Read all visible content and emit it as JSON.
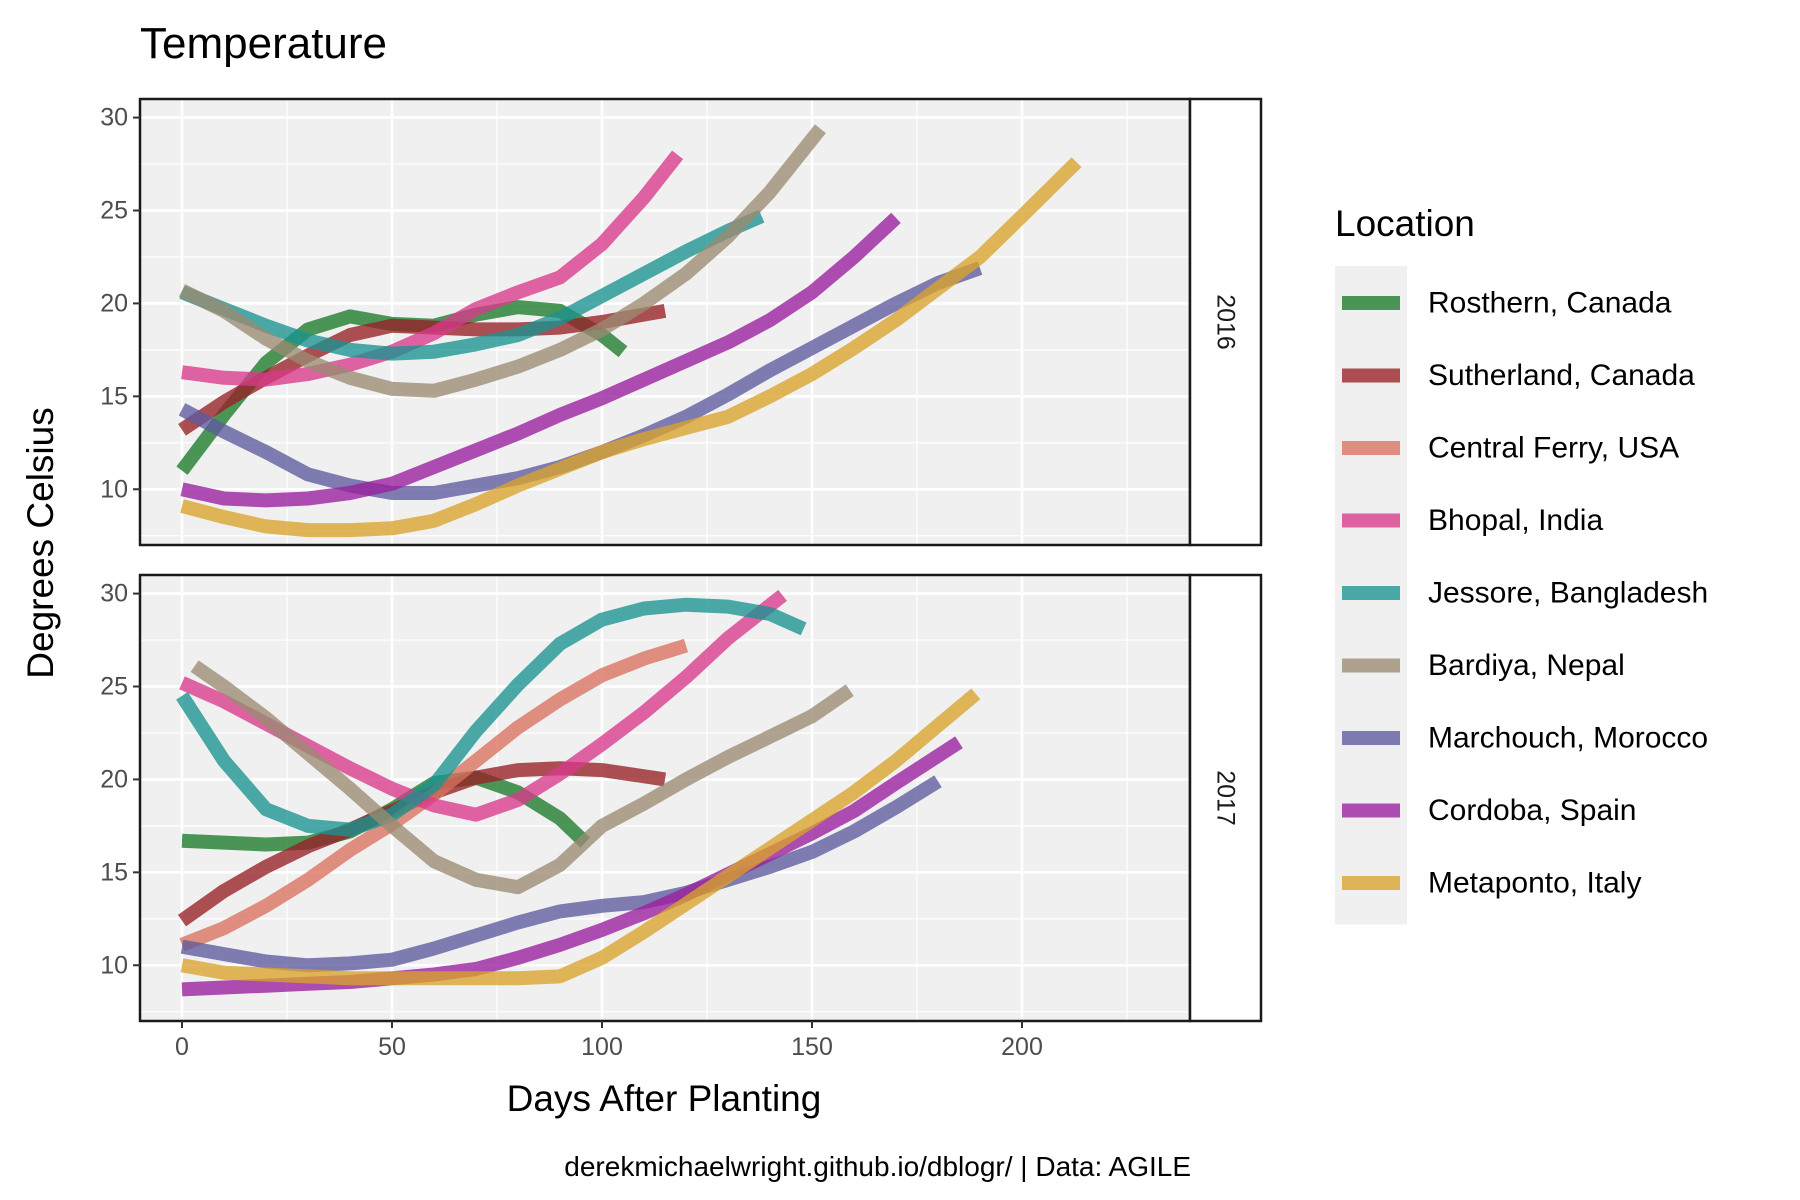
{
  "chart_data": {
    "type": "line",
    "title": "Temperature",
    "xlabel": "Days After Planting",
    "ylabel": "Degrees Celsius",
    "caption": "derekmichaelwright.github.io/dblogr/ | Data: AGILE",
    "legend_title": "Location",
    "legend_position": "right",
    "xlim": [
      -10,
      240
    ],
    "ylim": [
      7,
      31
    ],
    "x_ticks": [
      0,
      50,
      100,
      150,
      200
    ],
    "y_ticks": [
      10,
      15,
      20,
      25,
      30
    ],
    "grid": true,
    "facets": [
      "2016",
      "2017"
    ],
    "series": [
      {
        "name": "Rosthern, Canada",
        "color": "#1b7a2a",
        "data": {
          "2016": [
            [
              0,
              11
            ],
            [
              10,
              14
            ],
            [
              20,
              16.8
            ],
            [
              30,
              18.6
            ],
            [
              40,
              19.3
            ],
            [
              50,
              18.9
            ],
            [
              60,
              18.8
            ],
            [
              70,
              19.4
            ],
            [
              80,
              19.8
            ],
            [
              90,
              19.6
            ],
            [
              100,
              18.3
            ],
            [
              105,
              17.4
            ]
          ],
          "2017": [
            [
              0,
              16.7
            ],
            [
              10,
              16.6
            ],
            [
              20,
              16.5
            ],
            [
              30,
              16.6
            ],
            [
              40,
              17.2
            ],
            [
              50,
              18.4
            ],
            [
              60,
              19.8
            ],
            [
              70,
              20.1
            ],
            [
              80,
              19.3
            ],
            [
              90,
              17.9
            ],
            [
              96,
              16.6
            ]
          ]
        }
      },
      {
        "name": "Sutherland, Canada",
        "color": "#962025",
        "data": {
          "2016": [
            [
              0,
              13.2
            ],
            [
              10,
              14.7
            ],
            [
              20,
              16
            ],
            [
              30,
              17.2
            ],
            [
              40,
              18.3
            ],
            [
              50,
              18.8
            ],
            [
              60,
              18.7
            ],
            [
              70,
              18.6
            ],
            [
              80,
              18.6
            ],
            [
              90,
              18.7
            ],
            [
              100,
              19
            ],
            [
              115,
              19.6
            ]
          ],
          "2017": [
            [
              0,
              12.4
            ],
            [
              10,
              14
            ],
            [
              20,
              15.3
            ],
            [
              30,
              16.4
            ],
            [
              40,
              17.3
            ],
            [
              50,
              18.3
            ],
            [
              60,
              19.3
            ],
            [
              70,
              20.1
            ],
            [
              80,
              20.5
            ],
            [
              90,
              20.6
            ],
            [
              100,
              20.5
            ],
            [
              115,
              20
            ]
          ]
        }
      },
      {
        "name": "Central Ferry, USA",
        "color": "#d9715e",
        "data": {
          "2017": [
            [
              0,
              11.1
            ],
            [
              10,
              12
            ],
            [
              20,
              13.2
            ],
            [
              30,
              14.6
            ],
            [
              40,
              16.2
            ],
            [
              50,
              17.6
            ],
            [
              60,
              19.2
            ],
            [
              70,
              21
            ],
            [
              80,
              22.8
            ],
            [
              90,
              24.3
            ],
            [
              100,
              25.6
            ],
            [
              110,
              26.5
            ],
            [
              120,
              27.2
            ]
          ]
        }
      },
      {
        "name": "Bhopal, India",
        "color": "#d93a8c",
        "data": {
          "2016": [
            [
              0,
              16.3
            ],
            [
              10,
              16
            ],
            [
              20,
              15.9
            ],
            [
              30,
              16.2
            ],
            [
              40,
              16.7
            ],
            [
              50,
              17.4
            ],
            [
              60,
              18.4
            ],
            [
              70,
              19.7
            ],
            [
              80,
              20.6
            ],
            [
              90,
              21.4
            ],
            [
              100,
              23.2
            ],
            [
              110,
              25.7
            ],
            [
              118,
              28
            ]
          ],
          "2017": [
            [
              0,
              25.2
            ],
            [
              10,
              24.2
            ],
            [
              20,
              23
            ],
            [
              30,
              21.8
            ],
            [
              40,
              20.6
            ],
            [
              50,
              19.5
            ],
            [
              60,
              18.6
            ],
            [
              70,
              18.1
            ],
            [
              80,
              18.9
            ],
            [
              90,
              20.3
            ],
            [
              100,
              21.9
            ],
            [
              110,
              23.6
            ],
            [
              120,
              25.5
            ],
            [
              130,
              27.6
            ],
            [
              143,
              29.9
            ]
          ]
        }
      },
      {
        "name": "Jessore, Bangladesh",
        "color": "#1a9491",
        "data": {
          "2016": [
            [
              0,
              20.6
            ],
            [
              10,
              19.7
            ],
            [
              20,
              18.8
            ],
            [
              30,
              18
            ],
            [
              40,
              17.5
            ],
            [
              50,
              17.3
            ],
            [
              60,
              17.4
            ],
            [
              70,
              17.8
            ],
            [
              80,
              18.3
            ],
            [
              90,
              19.2
            ],
            [
              100,
              20.4
            ],
            [
              110,
              21.6
            ],
            [
              120,
              22.8
            ],
            [
              130,
              23.9
            ],
            [
              138,
              24.7
            ]
          ],
          "2017": [
            [
              0,
              24.5
            ],
            [
              10,
              21
            ],
            [
              20,
              18.4
            ],
            [
              30,
              17.5
            ],
            [
              40,
              17.3
            ],
            [
              50,
              18.1
            ],
            [
              60,
              19.7
            ],
            [
              70,
              22.6
            ],
            [
              80,
              25.1
            ],
            [
              90,
              27.3
            ],
            [
              100,
              28.6
            ],
            [
              110,
              29.2
            ],
            [
              120,
              29.4
            ],
            [
              130,
              29.3
            ],
            [
              140,
              28.9
            ],
            [
              148,
              28.1
            ]
          ]
        }
      },
      {
        "name": "Bardiya, Nepal",
        "color": "#9b8a72",
        "data": {
          "2016": [
            [
              0,
              20.7
            ],
            [
              10,
              19.6
            ],
            [
              20,
              18.1
            ],
            [
              30,
              16.9
            ],
            [
              40,
              16
            ],
            [
              50,
              15.4
            ],
            [
              60,
              15.3
            ],
            [
              70,
              15.9
            ],
            [
              80,
              16.6
            ],
            [
              90,
              17.5
            ],
            [
              100,
              18.6
            ],
            [
              110,
              20
            ],
            [
              120,
              21.6
            ],
            [
              130,
              23.6
            ],
            [
              140,
              26
            ],
            [
              152,
              29.4
            ]
          ],
          "2017": [
            [
              3,
              26.1
            ],
            [
              10,
              25
            ],
            [
              20,
              23.3
            ],
            [
              30,
              21.4
            ],
            [
              40,
              19.5
            ],
            [
              50,
              17.5
            ],
            [
              60,
              15.6
            ],
            [
              70,
              14.6
            ],
            [
              80,
              14.2
            ],
            [
              90,
              15.4
            ],
            [
              100,
              17.5
            ],
            [
              110,
              18.7
            ],
            [
              120,
              20
            ],
            [
              130,
              21.2
            ],
            [
              140,
              22.3
            ],
            [
              150,
              23.4
            ],
            [
              159,
              24.8
            ]
          ]
        }
      },
      {
        "name": "Marchouch, Morocco",
        "color": "#5e5a9e",
        "data": {
          "2016": [
            [
              0,
              14.3
            ],
            [
              10,
              13.1
            ],
            [
              20,
              12
            ],
            [
              30,
              10.8
            ],
            [
              40,
              10.2
            ],
            [
              50,
              9.8
            ],
            [
              60,
              9.8
            ],
            [
              70,
              10.2
            ],
            [
              80,
              10.6
            ],
            [
              90,
              11.2
            ],
            [
              100,
              12
            ],
            [
              110,
              12.9
            ],
            [
              120,
              13.9
            ],
            [
              130,
              15.1
            ],
            [
              140,
              16.4
            ],
            [
              150,
              17.6
            ],
            [
              160,
              18.8
            ],
            [
              170,
              20
            ],
            [
              180,
              21.1
            ],
            [
              190,
              21.9
            ]
          ],
          "2017": [
            [
              0,
              11
            ],
            [
              10,
              10.6
            ],
            [
              20,
              10.2
            ],
            [
              30,
              10
            ],
            [
              40,
              10.1
            ],
            [
              50,
              10.3
            ],
            [
              60,
              10.9
            ],
            [
              70,
              11.6
            ],
            [
              80,
              12.3
            ],
            [
              90,
              12.9
            ],
            [
              100,
              13.2
            ],
            [
              110,
              13.4
            ],
            [
              120,
              13.9
            ],
            [
              130,
              14.6
            ],
            [
              140,
              15.3
            ],
            [
              150,
              16.1
            ],
            [
              160,
              17.2
            ],
            [
              170,
              18.5
            ],
            [
              180,
              19.9
            ]
          ]
        }
      },
      {
        "name": "Cordoba, Spain",
        "color": "#9a1d9e",
        "data": {
          "2016": [
            [
              0,
              10
            ],
            [
              10,
              9.5
            ],
            [
              20,
              9.4
            ],
            [
              30,
              9.5
            ],
            [
              40,
              9.8
            ],
            [
              50,
              10.3
            ],
            [
              60,
              11.2
            ],
            [
              70,
              12.1
            ],
            [
              80,
              13
            ],
            [
              90,
              14
            ],
            [
              100,
              14.9
            ],
            [
              110,
              15.9
            ],
            [
              120,
              16.9
            ],
            [
              130,
              17.9
            ],
            [
              140,
              19.1
            ],
            [
              150,
              20.6
            ],
            [
              160,
              22.5
            ],
            [
              170,
              24.6
            ]
          ],
          "2017": [
            [
              0,
              8.7
            ],
            [
              10,
              8.8
            ],
            [
              20,
              8.9
            ],
            [
              30,
              9
            ],
            [
              40,
              9.1
            ],
            [
              50,
              9.3
            ],
            [
              60,
              9.5
            ],
            [
              70,
              9.8
            ],
            [
              80,
              10.4
            ],
            [
              90,
              11.1
            ],
            [
              100,
              11.9
            ],
            [
              110,
              12.8
            ],
            [
              120,
              13.8
            ],
            [
              130,
              14.9
            ],
            [
              140,
              16
            ],
            [
              150,
              17.1
            ],
            [
              160,
              18.3
            ],
            [
              170,
              19.8
            ],
            [
              185,
              22
            ]
          ]
        }
      },
      {
        "name": "Metaponto, Italy",
        "color": "#d9a32a",
        "data": {
          "2016": [
            [
              0,
              9.1
            ],
            [
              10,
              8.5
            ],
            [
              20,
              8
            ],
            [
              30,
              7.8
            ],
            [
              40,
              7.8
            ],
            [
              50,
              7.9
            ],
            [
              60,
              8.3
            ],
            [
              70,
              9.2
            ],
            [
              80,
              10.2
            ],
            [
              90,
              11.1
            ],
            [
              100,
              12
            ],
            [
              110,
              12.7
            ],
            [
              120,
              13.3
            ],
            [
              130,
              13.9
            ],
            [
              140,
              15
            ],
            [
              150,
              16.2
            ],
            [
              160,
              17.6
            ],
            [
              170,
              19.1
            ],
            [
              180,
              20.8
            ],
            [
              190,
              22.5
            ],
            [
              200,
              24.7
            ],
            [
              213,
              27.6
            ]
          ],
          "2017": [
            [
              0,
              10
            ],
            [
              10,
              9.6
            ],
            [
              20,
              9.5
            ],
            [
              30,
              9.4
            ],
            [
              40,
              9.3
            ],
            [
              50,
              9.3
            ],
            [
              60,
              9.3
            ],
            [
              70,
              9.3
            ],
            [
              80,
              9.3
            ],
            [
              90,
              9.4
            ],
            [
              100,
              10.4
            ],
            [
              110,
              11.8
            ],
            [
              120,
              13.3
            ],
            [
              130,
              14.8
            ],
            [
              140,
              16.3
            ],
            [
              150,
              17.8
            ],
            [
              160,
              19.3
            ],
            [
              170,
              21
            ],
            [
              180,
              22.9
            ],
            [
              189,
              24.6
            ]
          ]
        }
      }
    ]
  }
}
